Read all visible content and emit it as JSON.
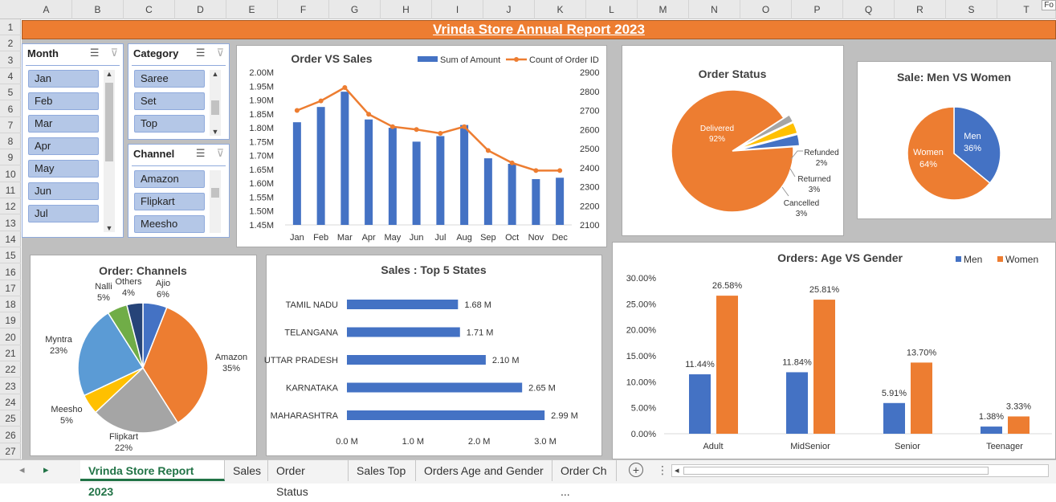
{
  "columns": [
    "A",
    "B",
    "C",
    "D",
    "E",
    "F",
    "G",
    "H",
    "I",
    "J",
    "K",
    "L",
    "M",
    "N",
    "O",
    "P",
    "Q",
    "R",
    "S",
    "T"
  ],
  "rows": [
    "1",
    "2",
    "3",
    "4",
    "5",
    "6",
    "7",
    "8",
    "9",
    "10",
    "11",
    "12",
    "13",
    "14",
    "15",
    "16",
    "17",
    "18",
    "19",
    "20",
    "21",
    "22",
    "23",
    "24",
    "25",
    "26",
    "27"
  ],
  "corner_tag": "Fo",
  "title": "Vrinda Store Annual Report 2023",
  "slicers": {
    "month": {
      "title": "Month",
      "items": [
        "Jan",
        "Feb",
        "Mar",
        "Apr",
        "May",
        "Jun",
        "Jul"
      ]
    },
    "category": {
      "title": "Category",
      "items": [
        "Saree",
        "Set",
        "Top"
      ]
    },
    "channel": {
      "title": "Channel",
      "items": [
        "Amazon",
        "Flipkart",
        "Meesho"
      ]
    }
  },
  "icons": {
    "multiselect": "multi-select-icon",
    "clear_filter": "clear-filter-icon"
  },
  "colors": {
    "accent": "#ed7d31",
    "blue": "#4472c4",
    "gray": "#a5a5a5",
    "yellow": "#ffc000",
    "lightblue": "#5b9bd5",
    "green": "#70ad47",
    "navy": "#264478"
  },
  "chart_data": [
    {
      "id": "order_vs_sales",
      "type": "bar",
      "title": "Order VS Sales",
      "categories": [
        "Jan",
        "Feb",
        "Mar",
        "Apr",
        "May",
        "Jun",
        "Jul",
        "Aug",
        "Sep",
        "Oct",
        "Nov",
        "Dec"
      ],
      "series": [
        {
          "name": "Sum of Amount",
          "type": "bar",
          "axis": "left",
          "values": [
            1.82,
            1.875,
            1.93,
            1.83,
            1.8,
            1.75,
            1.77,
            1.81,
            1.69,
            1.67,
            1.615,
            1.62
          ]
        },
        {
          "name": "Count of Order ID",
          "type": "line",
          "axis": "right",
          "values": [
            2700,
            2750,
            2820,
            2680,
            2615,
            2600,
            2580,
            2615,
            2490,
            2425,
            2385,
            2385
          ]
        }
      ],
      "left_ticks": [
        "2.00M",
        "1.95M",
        "1.90M",
        "1.85M",
        "1.80M",
        "1.75M",
        "1.70M",
        "1.65M",
        "1.60M",
        "1.55M",
        "1.50M",
        "1.45M"
      ],
      "right_ticks": [
        "2900",
        "2800",
        "2700",
        "2600",
        "2500",
        "2400",
        "2300",
        "2200",
        "2100"
      ],
      "ylim": [
        1.45,
        2.0
      ],
      "y2lim": [
        2100,
        2900
      ],
      "legend": "top-right"
    },
    {
      "id": "order_status",
      "type": "pie",
      "title": "Order Status",
      "labels": [
        "Delivered",
        "Refunded",
        "Returned",
        "Cancelled"
      ],
      "percent_labels": [
        "92%",
        "2%",
        "3%",
        "3%"
      ],
      "values": [
        92,
        2,
        3,
        3
      ]
    },
    {
      "id": "men_vs_women",
      "type": "pie",
      "title": "Sale: Men VS Women",
      "labels": [
        "Men",
        "Women"
      ],
      "percent_labels": [
        "36%",
        "64%"
      ],
      "values": [
        36,
        64
      ]
    },
    {
      "id": "order_channels",
      "type": "pie",
      "title": "Order: Channels",
      "labels": [
        "Ajio",
        "Amazon",
        "Flipkart",
        "Meesho",
        "Myntra",
        "Nalli",
        "Others"
      ],
      "percent_labels": [
        "6%",
        "35%",
        "22%",
        "5%",
        "23%",
        "5%",
        "4%"
      ],
      "values": [
        6,
        35,
        22,
        5,
        23,
        5,
        4
      ]
    },
    {
      "id": "top_states",
      "type": "bar",
      "orientation": "horizontal",
      "title": "Sales : Top 5 States",
      "categories": [
        "TAMIL NADU",
        "TELANGANA",
        "UTTAR PRADESH",
        "KARNATAKA",
        "MAHARASHTRA"
      ],
      "values": [
        1.68,
        1.71,
        2.1,
        2.65,
        2.99
      ],
      "value_labels": [
        "1.68 M",
        "1.71 M",
        "2.10 M",
        "2.65 M",
        "2.99 M"
      ],
      "x_ticks": [
        "0.0 M",
        "1.0 M",
        "2.0 M",
        "3.0 M"
      ],
      "xlim": [
        0,
        3.0
      ]
    },
    {
      "id": "age_vs_gender",
      "type": "bar",
      "title": "Orders: Age VS Gender",
      "categories": [
        "Adult",
        "MidSenior",
        "Senior",
        "Teenager"
      ],
      "series": [
        {
          "name": "Men",
          "values": [
            11.44,
            11.84,
            5.91,
            1.38
          ],
          "labels": [
            "11.44%",
            "11.84%",
            "5.91%",
            "1.38%"
          ]
        },
        {
          "name": "Women",
          "values": [
            26.58,
            25.81,
            13.7,
            3.33
          ],
          "labels": [
            "26.58%",
            "25.81%",
            "13.70%",
            "3.33%"
          ]
        }
      ],
      "y_ticks": [
        "30.00%",
        "25.00%",
        "20.00%",
        "15.00%",
        "10.00%",
        "5.00%",
        "0.00%"
      ],
      "ylim": [
        0,
        30
      ],
      "legend": "top-right"
    }
  ],
  "tabs": [
    "Vrinda Store Report 2023",
    "Sales",
    "Order Status",
    "Sales Top",
    "Orders Age and Gender",
    "Order Ch ..."
  ],
  "tab_controls": {
    "prev": "◂",
    "next": "▸",
    "add": "+",
    "menu": "⋮",
    "scroll_left": "◂"
  }
}
